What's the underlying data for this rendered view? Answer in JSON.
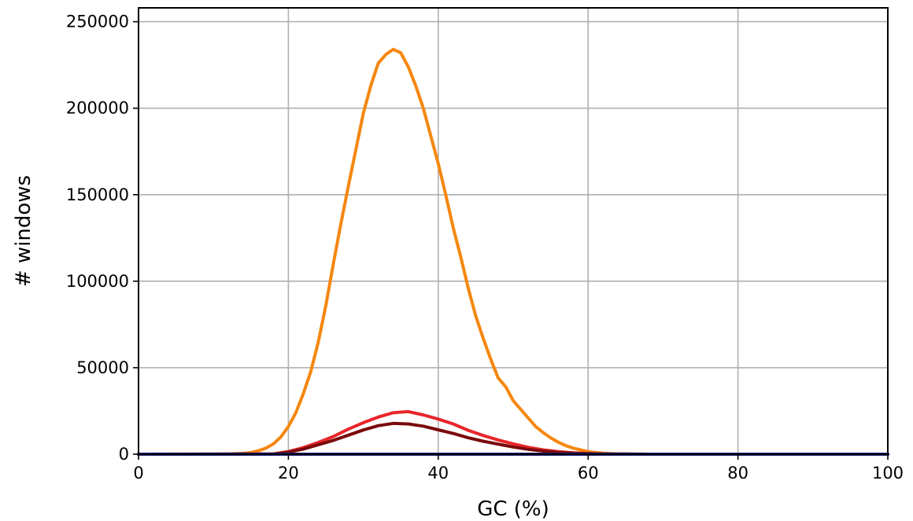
{
  "chart_data": {
    "type": "line",
    "title": "",
    "xlabel": "GC (%)",
    "ylabel": "# windows",
    "xlim": [
      0,
      100
    ],
    "ylim": [
      0,
      258000
    ],
    "xticks": [
      0,
      20,
      40,
      60,
      80,
      100
    ],
    "xtick_labels": [
      "0",
      "20",
      "40",
      "60",
      "80",
      "100"
    ],
    "yticks": [
      0,
      50000,
      100000,
      150000,
      200000,
      250000
    ],
    "ytick_labels": [
      "0",
      "50000",
      "100000",
      "150000",
      "200000",
      "250000"
    ],
    "grid": true,
    "legend": "none",
    "series": [
      {
        "color": "#f5870f",
        "x": [
          0,
          10,
          12,
          14,
          15,
          16,
          17,
          18,
          19,
          20,
          21,
          22,
          23,
          24,
          25,
          26,
          27,
          28,
          29,
          30,
          31,
          32,
          33,
          34,
          35,
          36,
          37,
          38,
          39,
          40,
          41,
          42,
          43,
          44,
          45,
          46,
          47,
          48,
          49,
          50,
          51,
          52,
          53,
          54,
          55,
          56,
          57,
          58,
          59,
          60,
          61,
          62,
          63,
          64,
          65,
          66,
          68,
          70,
          100
        ],
        "y": [
          0,
          0,
          100,
          500,
          1000,
          2000,
          3500,
          6000,
          10000,
          16000,
          24000,
          35000,
          48000,
          65000,
          86000,
          110000,
          133000,
          155000,
          176000,
          197000,
          213000,
          226000,
          231000,
          234000,
          232000,
          224000,
          213000,
          200000,
          184000,
          168000,
          150000,
          131000,
          114000,
          96000,
          80000,
          67000,
          55000,
          44000,
          39000,
          31000,
          26000,
          21000,
          16000,
          12500,
          9500,
          7000,
          5000,
          3500,
          2500,
          1500,
          1000,
          600,
          300,
          150,
          100,
          50,
          0,
          0,
          0
        ]
      },
      {
        "color": "#e8252a",
        "x": [
          0,
          18,
          20,
          22,
          24,
          26,
          28,
          30,
          32,
          34,
          36,
          38,
          40,
          42,
          44,
          46,
          48,
          50,
          52,
          54,
          56,
          58,
          60,
          62,
          64,
          66,
          68,
          100
        ],
        "y": [
          0,
          200,
          1500,
          3800,
          6800,
          10200,
          14500,
          18200,
          21500,
          24000,
          24600,
          22700,
          20300,
          17500,
          13800,
          10800,
          8200,
          6000,
          4000,
          2500,
          1500,
          800,
          400,
          200,
          100,
          50,
          0,
          0
        ]
      },
      {
        "color": "#7a0a0a",
        "x": [
          0,
          18,
          20,
          22,
          24,
          26,
          28,
          30,
          32,
          34,
          36,
          38,
          40,
          42,
          44,
          46,
          48,
          50,
          52,
          54,
          56,
          58,
          60,
          62,
          64,
          66,
          68,
          100
        ],
        "y": [
          0,
          100,
          1200,
          3000,
          5500,
          8000,
          11000,
          14000,
          16500,
          17800,
          17500,
          16200,
          14100,
          12000,
          9500,
          7500,
          5800,
          4200,
          2800,
          1800,
          1000,
          600,
          300,
          150,
          80,
          30,
          0,
          0
        ]
      },
      {
        "color": "#1f1f7a",
        "x": [
          0,
          100
        ],
        "y": [
          0,
          0
        ]
      }
    ]
  }
}
